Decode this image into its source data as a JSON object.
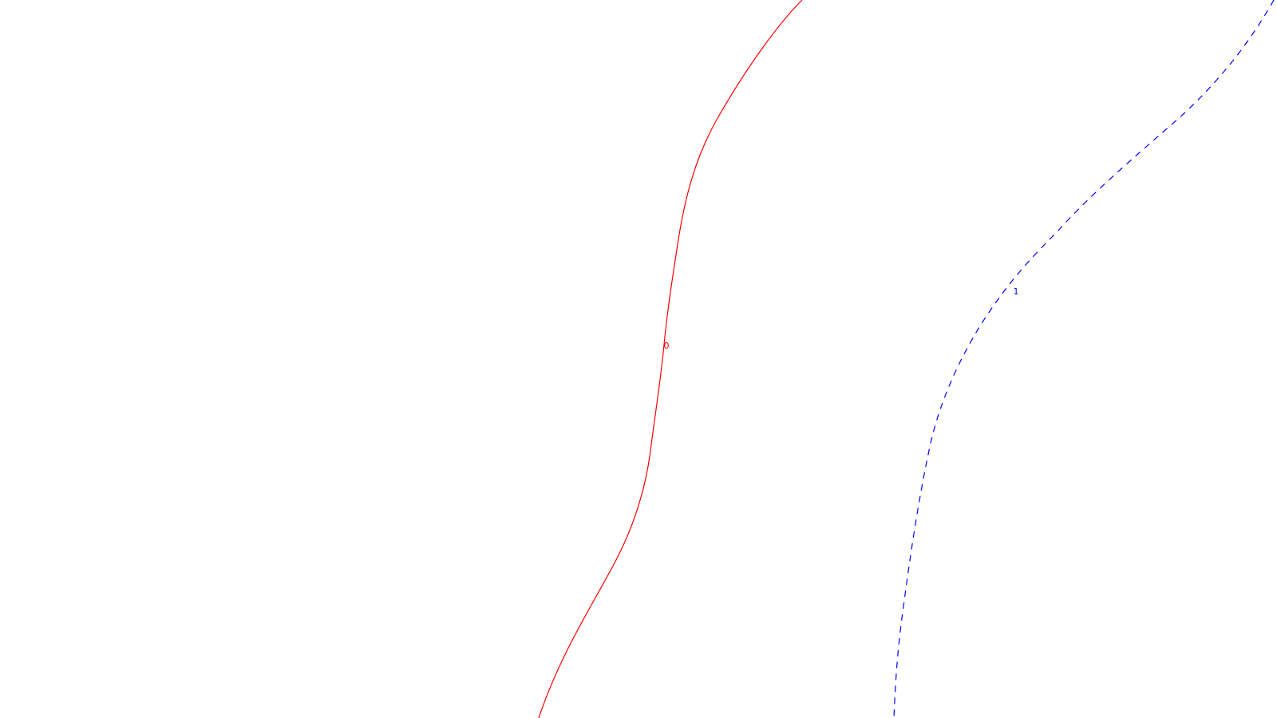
{
  "contours": [
    {
      "label": "0",
      "color": "#ff0000",
      "style": "solid"
    },
    {
      "label": "1",
      "color": "#0000ff",
      "style": "dashed"
    }
  ]
}
